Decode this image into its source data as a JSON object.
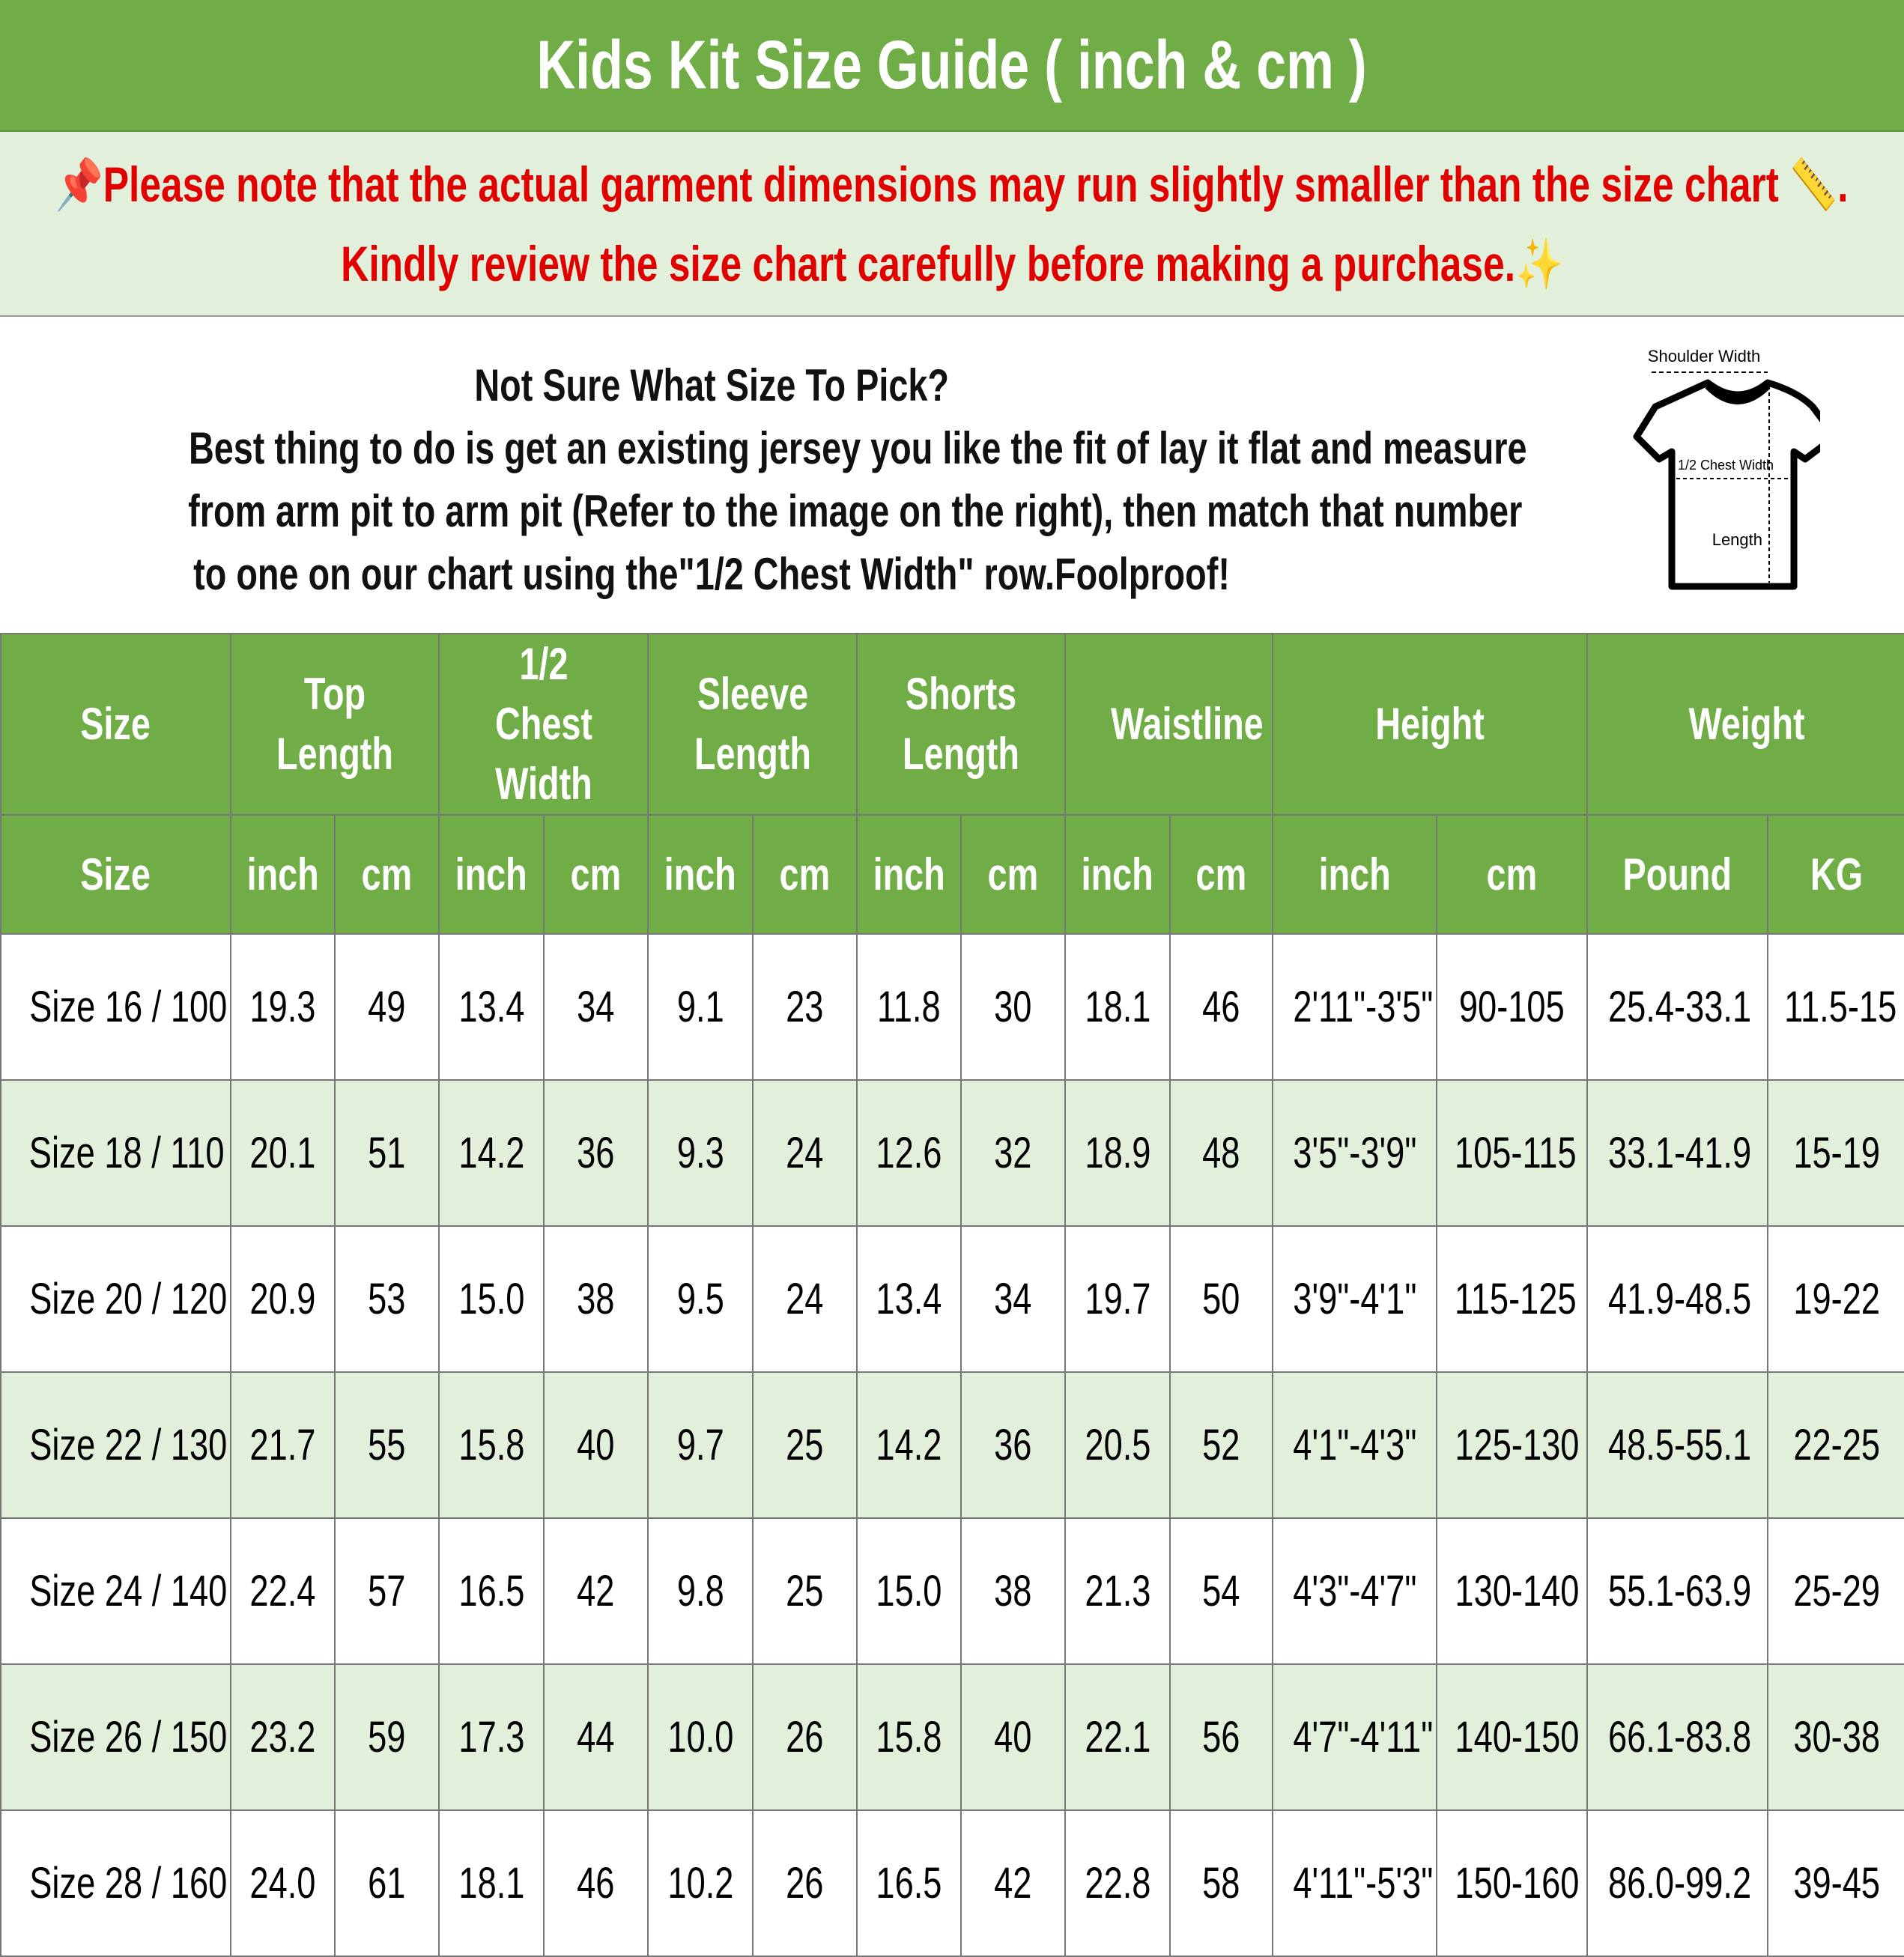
{
  "title": "Kids Kit Size Guide ( inch & cm )",
  "note": {
    "line1": "Please note that the actual garment dimensions may run slightly smaller than the size chart",
    "line2": "Kindly review the size chart carefully before making a purchase.",
    "pin_icon": "pushpin-icon",
    "ruler_icon": "ruler-icon",
    "sparkle_icon": "sparkles-icon",
    "color": "#E00000"
  },
  "info": {
    "heading": "Not Sure What Size To Pick?",
    "line1": "Best thing to do is get an existing jersey you like the fit of lay it flat and measure",
    "line2": "from arm pit to arm pit (Refer to the image on the right), then match that number",
    "line3": "to one on our chart using the\"1/2 Chest Width\" row.Foolproof!",
    "diagram": {
      "shoulder": "Shoulder Width",
      "chest": "1/2 Chest Width",
      "length": "Length"
    }
  },
  "table": {
    "groups": [
      "Size",
      "Top Length",
      "1/2 Chest Width",
      "Sleeve Length",
      "Shorts Length",
      "Waistline",
      "Height",
      "Weight"
    ],
    "units": [
      "Size",
      "inch",
      "cm",
      "inch",
      "cm",
      "inch",
      "cm",
      "inch",
      "cm",
      "inch",
      "cm",
      "inch",
      "cm",
      "Pound",
      "KG"
    ],
    "rows": [
      [
        "Size 16 / 100",
        "19.3",
        "49",
        "13.4",
        "34",
        "9.1",
        "23",
        "11.8",
        "30",
        "18.1",
        "46",
        "2'11\"-3'5\"",
        "90-105",
        "25.4-33.1",
        "11.5-15"
      ],
      [
        "Size 18 / 110",
        "20.1",
        "51",
        "14.2",
        "36",
        "9.3",
        "24",
        "12.6",
        "32",
        "18.9",
        "48",
        "3'5\"-3'9\"",
        "105-115",
        "33.1-41.9",
        "15-19"
      ],
      [
        "Size 20 / 120",
        "20.9",
        "53",
        "15.0",
        "38",
        "9.5",
        "24",
        "13.4",
        "34",
        "19.7",
        "50",
        "3'9\"-4'1\"",
        "115-125",
        "41.9-48.5",
        "19-22"
      ],
      [
        "Size 22 / 130",
        "21.7",
        "55",
        "15.8",
        "40",
        "9.7",
        "25",
        "14.2",
        "36",
        "20.5",
        "52",
        "4'1\"-4'3\"",
        "125-130",
        "48.5-55.1",
        "22-25"
      ],
      [
        "Size 24 / 140",
        "22.4",
        "57",
        "16.5",
        "42",
        "9.8",
        "25",
        "15.0",
        "38",
        "21.3",
        "54",
        "4'3\"-4'7\"",
        "130-140",
        "55.1-63.9",
        "25-29"
      ],
      [
        "Size 26 / 150",
        "23.2",
        "59",
        "17.3",
        "44",
        "10.0",
        "26",
        "15.8",
        "40",
        "22.1",
        "56",
        "4'7\"-4'11\"",
        "140-150",
        "66.1-83.8",
        "30-38"
      ],
      [
        "Size 28 / 160",
        "24.0",
        "61",
        "18.1",
        "46",
        "10.2",
        "26",
        "16.5",
        "42",
        "22.8",
        "58",
        "4'11\"-5'3\"",
        "150-160",
        "86.0-99.2",
        "39-45"
      ]
    ]
  },
  "colors": {
    "header_green": "#70AD47",
    "band_green": "#E2EFDA"
  }
}
